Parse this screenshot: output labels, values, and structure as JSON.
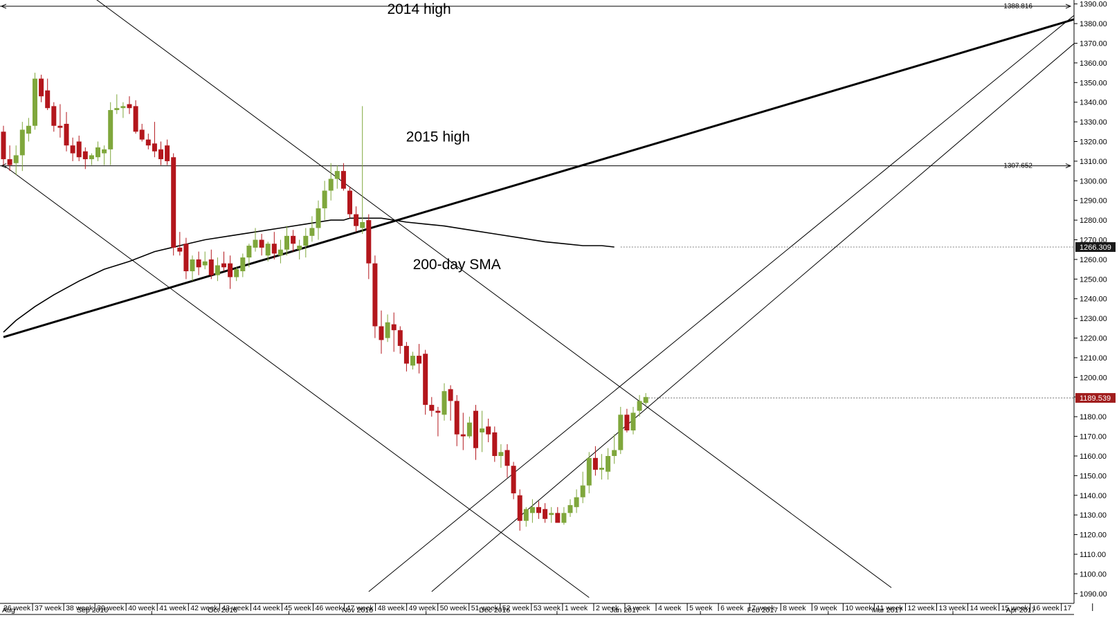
{
  "chart_data": {
    "type": "candlestick",
    "title": "",
    "ylim": [
      1085,
      1392
    ],
    "y_ticks": [
      1090,
      1100,
      1110,
      1120,
      1130,
      1140,
      1150,
      1160,
      1170,
      1180,
      1190,
      1200,
      1210,
      1220,
      1230,
      1240,
      1250,
      1260,
      1270,
      1280,
      1290,
      1300,
      1310,
      1320,
      1330,
      1340,
      1350,
      1360,
      1370,
      1380,
      1390
    ],
    "y_tick_labels": [
      "1090.00",
      "1100.00",
      "1110.00",
      "1120.00",
      "1130.00",
      "1140.00",
      "1150.00",
      "1160.00",
      "1170.00",
      "1180.00",
      "1190.00",
      "1200.00",
      "1210.00",
      "1220.00",
      "1230.00",
      "1240.00",
      "1250.00",
      "1260.00",
      "1270.00",
      "1280.00",
      "1290.00",
      "1300.00",
      "1310.00",
      "1320.00",
      "1330.00",
      "1340.00",
      "1350.00",
      "1360.00",
      "1370.00",
      "1380.00",
      "1390.00"
    ],
    "week_labels": [
      "36 week",
      "37 week",
      "38 week",
      "39 week",
      "40 week",
      "41 week",
      "42 week",
      "43 week",
      "44 week",
      "45 week",
      "46 week",
      "47 week",
      "48 week",
      "49 week",
      "50 week",
      "51 week",
      "52 week",
      "53 week",
      "1 week",
      "2 week",
      "3 week",
      "4 week",
      "5 week",
      "6 week",
      "7 week",
      "8 week",
      "9 week",
      "10 week",
      "11 week",
      "12 week",
      "13 week",
      "14 week",
      "15 week",
      "16 week",
      "17"
    ],
    "month_labels": [
      {
        "label": "Aug",
        "week": 0
      },
      {
        "label": "Sep 2016",
        "week": 2.4
      },
      {
        "label": "Oct 2016",
        "week": 6.6
      },
      {
        "label": "Nov 2016",
        "week": 10.9
      },
      {
        "label": "Dec 2016",
        "week": 15.3
      },
      {
        "label": "Jan 2017",
        "week": 19.5
      },
      {
        "label": "Feb 2017",
        "week": 23.9
      },
      {
        "label": "Mar 2017",
        "week": 27.9
      },
      {
        "label": "Apr 2017",
        "week": 32.2
      }
    ],
    "month_separators": [
      4.8,
      9.2,
      13.6,
      17.8,
      22.4,
      26.5,
      30.5
    ],
    "candles": [
      {
        "o": 1325,
        "h": 1328,
        "l": 1308,
        "c": 1311
      },
      {
        "o": 1311,
        "h": 1318,
        "l": 1305,
        "c": 1308
      },
      {
        "o": 1309,
        "h": 1318,
        "l": 1303,
        "c": 1313
      },
      {
        "o": 1313,
        "h": 1330,
        "l": 1305,
        "c": 1326
      },
      {
        "o": 1324,
        "h": 1332,
        "l": 1320,
        "c": 1328
      },
      {
        "o": 1328,
        "h": 1355,
        "l": 1326,
        "c": 1352
      },
      {
        "o": 1352,
        "h": 1354,
        "l": 1340,
        "c": 1343
      },
      {
        "o": 1346,
        "h": 1352,
        "l": 1336,
        "c": 1337
      },
      {
        "o": 1338,
        "h": 1340,
        "l": 1325,
        "c": 1328
      },
      {
        "o": 1328,
        "h": 1339,
        "l": 1322,
        "c": 1327
      },
      {
        "o": 1329,
        "h": 1335,
        "l": 1315,
        "c": 1318
      },
      {
        "o": 1318,
        "h": 1322,
        "l": 1310,
        "c": 1314
      },
      {
        "o": 1320,
        "h": 1323,
        "l": 1310,
        "c": 1312
      },
      {
        "o": 1315,
        "h": 1317,
        "l": 1306,
        "c": 1311
      },
      {
        "o": 1311,
        "h": 1314,
        "l": 1308,
        "c": 1313
      },
      {
        "o": 1312,
        "h": 1320,
        "l": 1310,
        "c": 1317
      },
      {
        "o": 1314,
        "h": 1318,
        "l": 1308,
        "c": 1316
      },
      {
        "o": 1316,
        "h": 1340,
        "l": 1308,
        "c": 1336
      },
      {
        "o": 1336,
        "h": 1344,
        "l": 1334,
        "c": 1337
      },
      {
        "o": 1337,
        "h": 1340,
        "l": 1332,
        "c": 1338
      },
      {
        "o": 1339,
        "h": 1343,
        "l": 1334,
        "c": 1337
      },
      {
        "o": 1338,
        "h": 1341,
        "l": 1324,
        "c": 1325
      },
      {
        "o": 1326,
        "h": 1329,
        "l": 1320,
        "c": 1321
      },
      {
        "o": 1321,
        "h": 1324,
        "l": 1316,
        "c": 1318
      },
      {
        "o": 1319,
        "h": 1330,
        "l": 1312,
        "c": 1315
      },
      {
        "o": 1316,
        "h": 1320,
        "l": 1308,
        "c": 1311
      },
      {
        "o": 1318,
        "h": 1321,
        "l": 1308,
        "c": 1310
      },
      {
        "o": 1312,
        "h": 1314,
        "l": 1262,
        "c": 1266
      },
      {
        "o": 1266,
        "h": 1274,
        "l": 1262,
        "c": 1264
      },
      {
        "o": 1268,
        "h": 1271,
        "l": 1250,
        "c": 1254
      },
      {
        "o": 1254,
        "h": 1262,
        "l": 1249,
        "c": 1260
      },
      {
        "o": 1260,
        "h": 1264,
        "l": 1252,
        "c": 1256
      },
      {
        "o": 1257,
        "h": 1264,
        "l": 1255,
        "c": 1259
      },
      {
        "o": 1260,
        "h": 1265,
        "l": 1250,
        "c": 1252
      },
      {
        "o": 1252,
        "h": 1261,
        "l": 1249,
        "c": 1257
      },
      {
        "o": 1258,
        "h": 1264,
        "l": 1254,
        "c": 1256
      },
      {
        "o": 1258,
        "h": 1262,
        "l": 1245,
        "c": 1251
      },
      {
        "o": 1251,
        "h": 1256,
        "l": 1249,
        "c": 1255
      },
      {
        "o": 1254,
        "h": 1263,
        "l": 1251,
        "c": 1261
      },
      {
        "o": 1261,
        "h": 1268,
        "l": 1256,
        "c": 1267
      },
      {
        "o": 1266,
        "h": 1276,
        "l": 1264,
        "c": 1270
      },
      {
        "o": 1270,
        "h": 1273,
        "l": 1262,
        "c": 1266
      },
      {
        "o": 1262,
        "h": 1269,
        "l": 1259,
        "c": 1268
      },
      {
        "o": 1268,
        "h": 1274,
        "l": 1260,
        "c": 1263
      },
      {
        "o": 1262,
        "h": 1270,
        "l": 1258,
        "c": 1265
      },
      {
        "o": 1265,
        "h": 1277,
        "l": 1262,
        "c": 1272
      },
      {
        "o": 1272,
        "h": 1275,
        "l": 1264,
        "c": 1268
      },
      {
        "o": 1265,
        "h": 1270,
        "l": 1260,
        "c": 1267
      },
      {
        "o": 1267,
        "h": 1276,
        "l": 1261,
        "c": 1272
      },
      {
        "o": 1272,
        "h": 1282,
        "l": 1269,
        "c": 1276
      },
      {
        "o": 1276,
        "h": 1290,
        "l": 1270,
        "c": 1286
      },
      {
        "o": 1286,
        "h": 1300,
        "l": 1280,
        "c": 1295
      },
      {
        "o": 1295,
        "h": 1309,
        "l": 1290,
        "c": 1301
      },
      {
        "o": 1301,
        "h": 1308,
        "l": 1296,
        "c": 1305
      },
      {
        "o": 1305,
        "h": 1309,
        "l": 1295,
        "c": 1296
      },
      {
        "o": 1295,
        "h": 1297,
        "l": 1281,
        "c": 1283
      },
      {
        "o": 1283,
        "h": 1287,
        "l": 1274,
        "c": 1277
      },
      {
        "o": 1276,
        "h": 1338,
        "l": 1273,
        "c": 1279
      },
      {
        "o": 1280,
        "h": 1283,
        "l": 1250,
        "c": 1258
      },
      {
        "o": 1258,
        "h": 1262,
        "l": 1220,
        "c": 1226
      },
      {
        "o": 1226,
        "h": 1234,
        "l": 1212,
        "c": 1219
      },
      {
        "o": 1220,
        "h": 1232,
        "l": 1218,
        "c": 1228
      },
      {
        "o": 1227,
        "h": 1233,
        "l": 1213,
        "c": 1224
      },
      {
        "o": 1224,
        "h": 1226,
        "l": 1212,
        "c": 1216
      },
      {
        "o": 1216,
        "h": 1218,
        "l": 1203,
        "c": 1207
      },
      {
        "o": 1206,
        "h": 1213,
        "l": 1204,
        "c": 1211
      },
      {
        "o": 1211,
        "h": 1217,
        "l": 1202,
        "c": 1207
      },
      {
        "o": 1212,
        "h": 1214,
        "l": 1181,
        "c": 1186
      },
      {
        "o": 1186,
        "h": 1190,
        "l": 1180,
        "c": 1183
      },
      {
        "o": 1183,
        "h": 1185,
        "l": 1170,
        "c": 1182
      },
      {
        "o": 1181,
        "h": 1197,
        "l": 1178,
        "c": 1193
      },
      {
        "o": 1194,
        "h": 1196,
        "l": 1178,
        "c": 1188
      },
      {
        "o": 1188,
        "h": 1191,
        "l": 1165,
        "c": 1171
      },
      {
        "o": 1171,
        "h": 1182,
        "l": 1163,
        "c": 1170
      },
      {
        "o": 1170,
        "h": 1180,
        "l": 1169,
        "c": 1177
      },
      {
        "o": 1183,
        "h": 1186,
        "l": 1158,
        "c": 1164
      },
      {
        "o": 1172,
        "h": 1183,
        "l": 1162,
        "c": 1174
      },
      {
        "o": 1175,
        "h": 1179,
        "l": 1167,
        "c": 1171
      },
      {
        "o": 1172,
        "h": 1175,
        "l": 1157,
        "c": 1160
      },
      {
        "o": 1160,
        "h": 1166,
        "l": 1154,
        "c": 1162
      },
      {
        "o": 1163,
        "h": 1166,
        "l": 1149,
        "c": 1155
      },
      {
        "o": 1155,
        "h": 1157,
        "l": 1138,
        "c": 1141
      },
      {
        "o": 1140,
        "h": 1143,
        "l": 1122,
        "c": 1127
      },
      {
        "o": 1127,
        "h": 1134,
        "l": 1124,
        "c": 1133
      },
      {
        "o": 1131,
        "h": 1138,
        "l": 1126,
        "c": 1134
      },
      {
        "o": 1134,
        "h": 1137,
        "l": 1128,
        "c": 1131
      },
      {
        "o": 1133,
        "h": 1136,
        "l": 1126,
        "c": 1128
      },
      {
        "o": 1130,
        "h": 1134,
        "l": 1126,
        "c": 1131
      },
      {
        "o": 1131,
        "h": 1134,
        "l": 1127,
        "c": 1126
      },
      {
        "o": 1126,
        "h": 1134,
        "l": 1125,
        "c": 1131
      },
      {
        "o": 1131,
        "h": 1138,
        "l": 1129,
        "c": 1135
      },
      {
        "o": 1134,
        "h": 1143,
        "l": 1131,
        "c": 1139
      },
      {
        "o": 1139,
        "h": 1152,
        "l": 1136,
        "c": 1145
      },
      {
        "o": 1145,
        "h": 1162,
        "l": 1141,
        "c": 1159
      },
      {
        "o": 1159,
        "h": 1165,
        "l": 1150,
        "c": 1153
      },
      {
        "o": 1153,
        "h": 1161,
        "l": 1148,
        "c": 1154
      },
      {
        "o": 1152,
        "h": 1164,
        "l": 1148,
        "c": 1160
      },
      {
        "o": 1160,
        "h": 1171,
        "l": 1156,
        "c": 1163
      },
      {
        "o": 1163,
        "h": 1185,
        "l": 1161,
        "c": 1181
      },
      {
        "o": 1181,
        "h": 1184,
        "l": 1172,
        "c": 1173
      },
      {
        "o": 1173,
        "h": 1185,
        "l": 1171,
        "c": 1182
      },
      {
        "o": 1183,
        "h": 1191,
        "l": 1180,
        "c": 1188
      },
      {
        "o": 1187,
        "h": 1192,
        "l": 1186,
        "c": 1190
      }
    ],
    "sma_200": [
      [
        0,
        1223
      ],
      [
        2,
        1229
      ],
      [
        5,
        1236
      ],
      [
        8,
        1242
      ],
      [
        12,
        1249
      ],
      [
        16,
        1255
      ],
      [
        20,
        1259
      ],
      [
        24,
        1264
      ],
      [
        28,
        1267
      ],
      [
        32,
        1270
      ],
      [
        36,
        1272
      ],
      [
        40,
        1274
      ],
      [
        44,
        1276
      ],
      [
        48,
        1278
      ],
      [
        52,
        1280
      ],
      [
        54,
        1280
      ],
      [
        55,
        1281
      ],
      [
        57,
        1281
      ],
      [
        58,
        1281
      ],
      [
        60,
        1281
      ],
      [
        62,
        1280
      ],
      [
        64,
        1279
      ],
      [
        67,
        1278
      ],
      [
        70,
        1277
      ],
      [
        74,
        1275
      ],
      [
        78,
        1273
      ],
      [
        82,
        1271
      ],
      [
        86,
        1269
      ],
      [
        89,
        1268
      ],
      [
        92,
        1267
      ],
      [
        95,
        1267
      ],
      [
        97,
        1266.309
      ]
    ],
    "trendlines": [
      {
        "name": "support-trendline",
        "width": 3,
        "points": [
          [
            0,
            1220.5
          ],
          [
            173,
            1385
          ]
        ]
      },
      {
        "name": "falling-channel-upper",
        "width": 1,
        "points": [
          [
            14,
            1394
          ],
          [
            141,
            1093
          ]
        ]
      },
      {
        "name": "falling-channel-lower",
        "width": 1,
        "points": [
          [
            0,
            1308
          ],
          [
            93,
            1088
          ]
        ]
      },
      {
        "name": "rising-channel-upper",
        "width": 1,
        "points": [
          [
            58,
            1091
          ],
          [
            173,
            1392
          ]
        ]
      },
      {
        "name": "rising-channel-lower",
        "width": 1,
        "points": [
          [
            68,
            1091
          ],
          [
            173,
            1378
          ]
        ]
      }
    ],
    "hlines": [
      {
        "name": "hline-2014-high",
        "value": 1388.816,
        "label": "1388.816"
      },
      {
        "name": "hline-2015-high",
        "value": 1307.652,
        "label": "1307.652"
      }
    ],
    "price_labels": [
      {
        "name": "price-label-sma",
        "value": 1266.309,
        "label": "1266.309",
        "bg": "#1a1a1a"
      },
      {
        "name": "price-label-current",
        "value": 1189.539,
        "label": "1189.539",
        "bg": "#a11d1d"
      }
    ],
    "annotations": [
      {
        "text": "2014 high",
        "at": [
          66,
          1385
        ]
      },
      {
        "text": "2015 high",
        "at": [
          69,
          1320
        ]
      },
      {
        "text": "200-day SMA",
        "at": [
          72,
          1255
        ]
      }
    ]
  },
  "colors": {
    "up": "#7fa73c",
    "down": "#b3161c",
    "grid": "#000000"
  }
}
